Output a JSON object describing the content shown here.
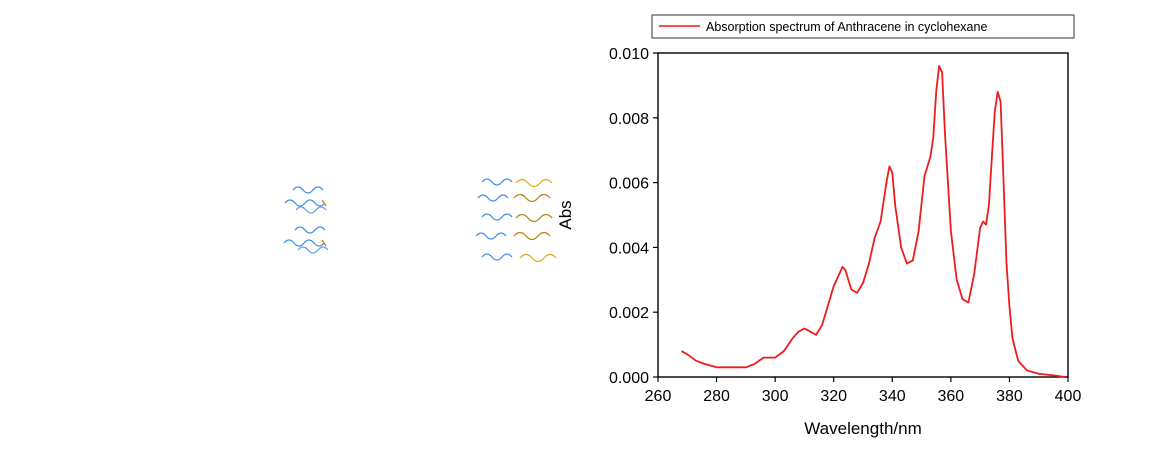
{
  "chart_data": {
    "type": "line",
    "xlabel": "Wavelength/nm",
    "ylabel": "Abs",
    "xlim": [
      260,
      400
    ],
    "ylim": [
      0,
      0.01
    ],
    "x_ticks": [
      "260",
      "280",
      "300",
      "320",
      "340",
      "360",
      "380",
      "400"
    ],
    "y_ticks": [
      "0.000",
      "0.002",
      "0.004",
      "0.006",
      "0.008",
      "0.010"
    ],
    "grid": false,
    "legend_position": "top",
    "series": [
      {
        "name": "Absorption spectrum of Anthracene in cyclohexane",
        "color": "#ee1c1c",
        "x": [
          268,
          270,
          273,
          276,
          280,
          285,
          290,
          293,
          296,
          300,
          303,
          306,
          308,
          310,
          312,
          314,
          316,
          318,
          320,
          322,
          323,
          324,
          326,
          328,
          330,
          332,
          334,
          336,
          338,
          339,
          340,
          341,
          343,
          345,
          347,
          349,
          351,
          353,
          354,
          355,
          356,
          357,
          358,
          360,
          362,
          364,
          366,
          368,
          370,
          371,
          372,
          373,
          374,
          375,
          376,
          377,
          378,
          379,
          380,
          381,
          383,
          386,
          390,
          395,
          399
        ],
        "y": [
          0.0008,
          0.0007,
          0.0005,
          0.0004,
          0.0003,
          0.0003,
          0.0003,
          0.0004,
          0.0006,
          0.0006,
          0.0008,
          0.0012,
          0.0014,
          0.0015,
          0.0014,
          0.0013,
          0.0016,
          0.0022,
          0.0028,
          0.0032,
          0.0034,
          0.0033,
          0.0027,
          0.0026,
          0.0029,
          0.0035,
          0.0043,
          0.0048,
          0.006,
          0.0065,
          0.0063,
          0.0053,
          0.004,
          0.0035,
          0.0036,
          0.0045,
          0.0062,
          0.0068,
          0.0074,
          0.0088,
          0.0096,
          0.0094,
          0.0075,
          0.0045,
          0.003,
          0.0024,
          0.0023,
          0.0032,
          0.0046,
          0.0048,
          0.0047,
          0.0053,
          0.0068,
          0.0082,
          0.0088,
          0.0085,
          0.006,
          0.0035,
          0.0022,
          0.0012,
          0.0005,
          0.0002,
          0.0001,
          5e-05,
          0.0
        ]
      }
    ]
  }
}
